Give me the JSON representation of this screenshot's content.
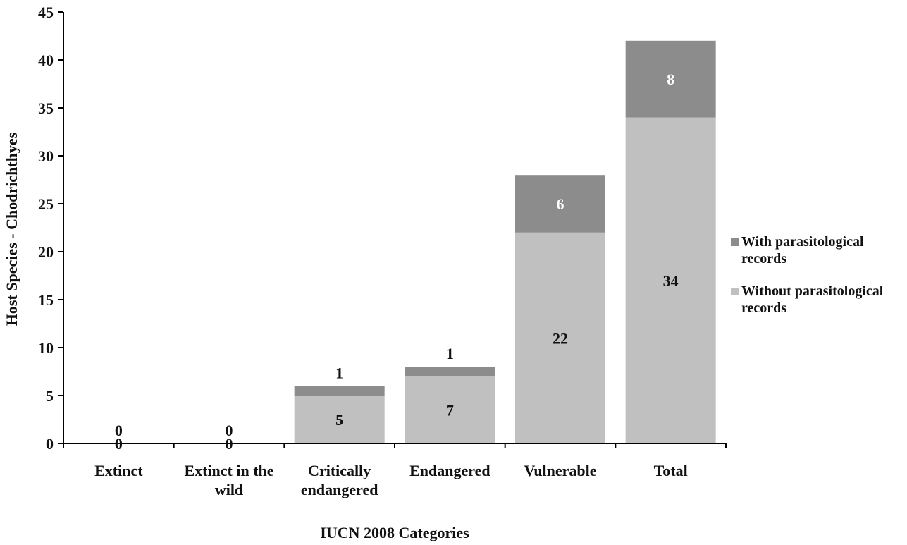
{
  "chart_data": {
    "type": "bar",
    "stacked": true,
    "categories": [
      [
        "Extinct"
      ],
      [
        "Extinct in the",
        "wild"
      ],
      [
        "Critically",
        "endangered"
      ],
      [
        "Endangered"
      ],
      [
        "Vulnerable"
      ],
      [
        "Total"
      ]
    ],
    "series": [
      {
        "name": "Without parasitological records",
        "legend_lines": [
          "Without parasitological",
          "records"
        ],
        "color": "#c0c0c0",
        "label_color": "#111111",
        "values": [
          0,
          0,
          5,
          7,
          22,
          34
        ]
      },
      {
        "name": "With parasitological records",
        "legend_lines": [
          "With parasitological",
          "records"
        ],
        "color": "#8c8c8c",
        "label_color": "#ffffff",
        "values": [
          0,
          0,
          1,
          1,
          6,
          8
        ]
      }
    ],
    "xlabel": "IUCN 2008 Categories",
    "ylabel": "Host Species - Chodrichthyes",
    "ylim": [
      0,
      45
    ],
    "yticks": [
      0,
      5,
      10,
      15,
      20,
      25,
      30,
      35,
      40,
      45
    ],
    "grid": false,
    "legend_position": "right"
  }
}
